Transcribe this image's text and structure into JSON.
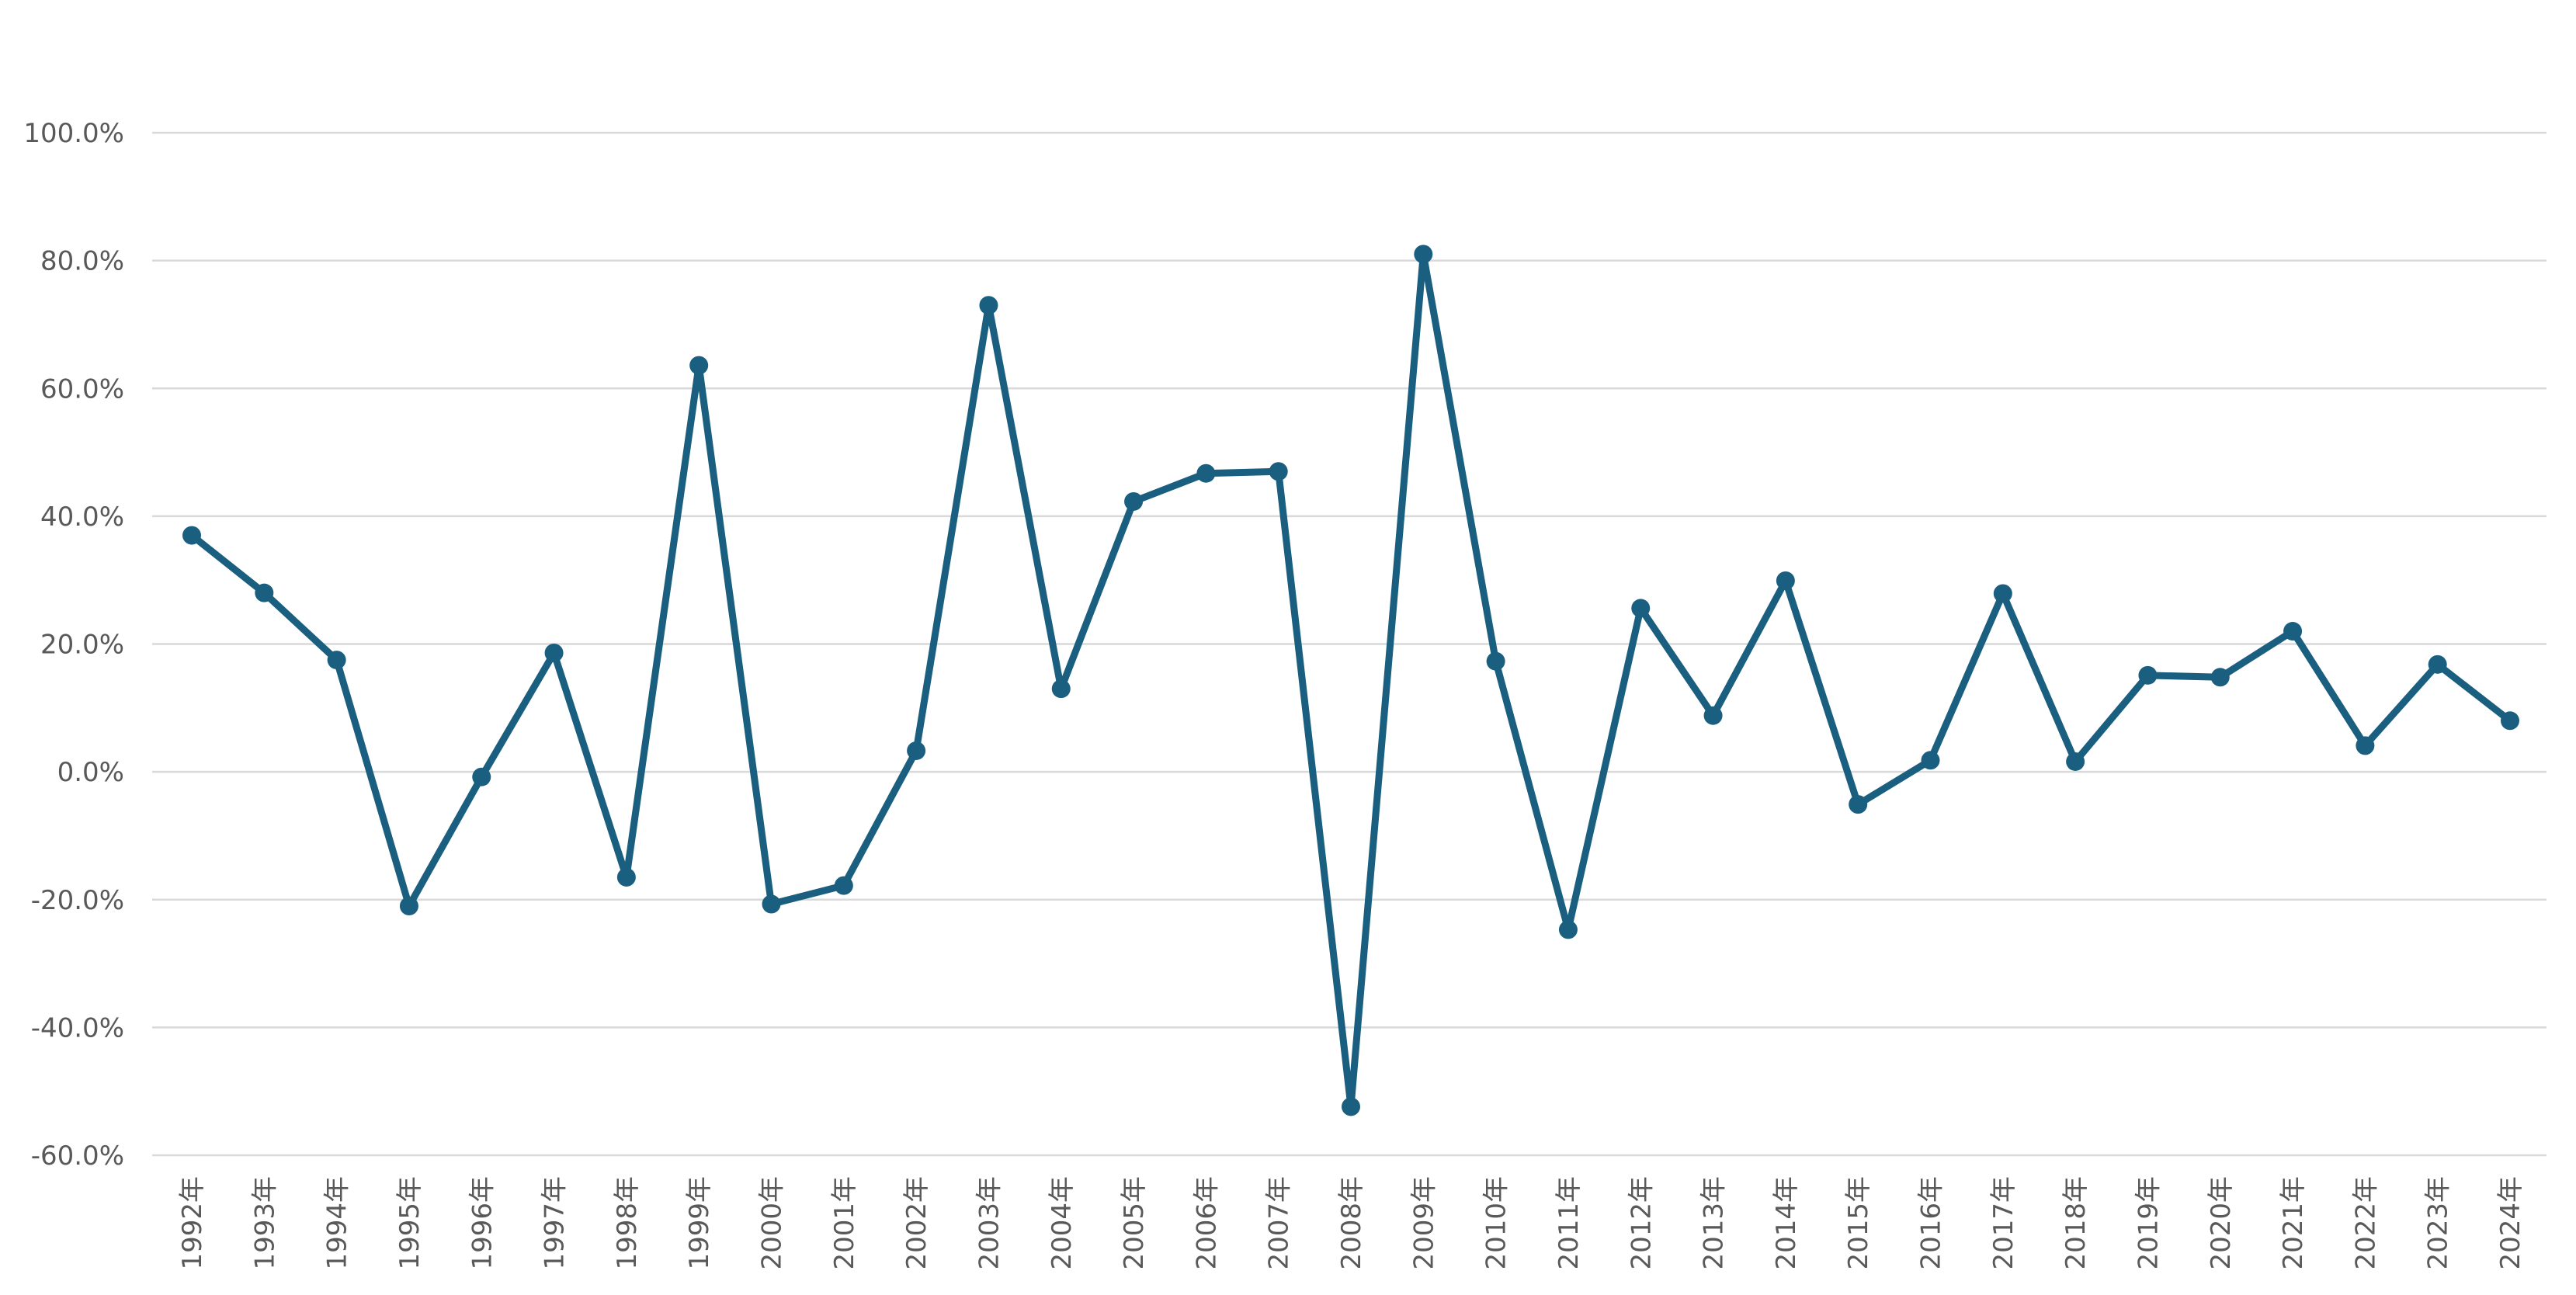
{
  "chart_data": {
    "type": "line",
    "title": "",
    "xlabel": "",
    "ylabel": "",
    "ylim": [
      -60,
      100
    ],
    "y_tick_step": 20,
    "y_tick_labels": [
      "-60.0%",
      "-40.0%",
      "-20.0%",
      "0.0%",
      "20.0%",
      "40.0%",
      "60.0%",
      "80.0%",
      "100.0%"
    ],
    "grid": "horizontal",
    "legend": "none",
    "categories": [
      "1992年",
      "1993年",
      "1994年",
      "1995年",
      "1996年",
      "1997年",
      "1998年",
      "1999年",
      "2000年",
      "2001年",
      "2002年",
      "2003年",
      "2004年",
      "2005年",
      "2006年",
      "2007年",
      "2008年",
      "2009年",
      "2010年",
      "2011年",
      "2012年",
      "2013年",
      "2014年",
      "2015年",
      "2016年",
      "2017年",
      "2018年",
      "2019年",
      "2020年",
      "2021年",
      "2022年",
      "2023年",
      "2024年"
    ],
    "series": [
      {
        "color": "#1a5f7f",
        "values": [
          37.0,
          28.0,
          17.5,
          -21.0,
          -0.8,
          18.6,
          -16.5,
          63.6,
          -20.7,
          -17.8,
          3.3,
          73.0,
          13.0,
          42.3,
          46.7,
          47.0,
          -52.4,
          81.0,
          17.3,
          -24.7,
          25.6,
          8.8,
          29.9,
          -5.1,
          1.8,
          27.9,
          1.6,
          15.1,
          14.8,
          22.0,
          4.1,
          16.8,
          8.0
        ]
      }
    ]
  }
}
